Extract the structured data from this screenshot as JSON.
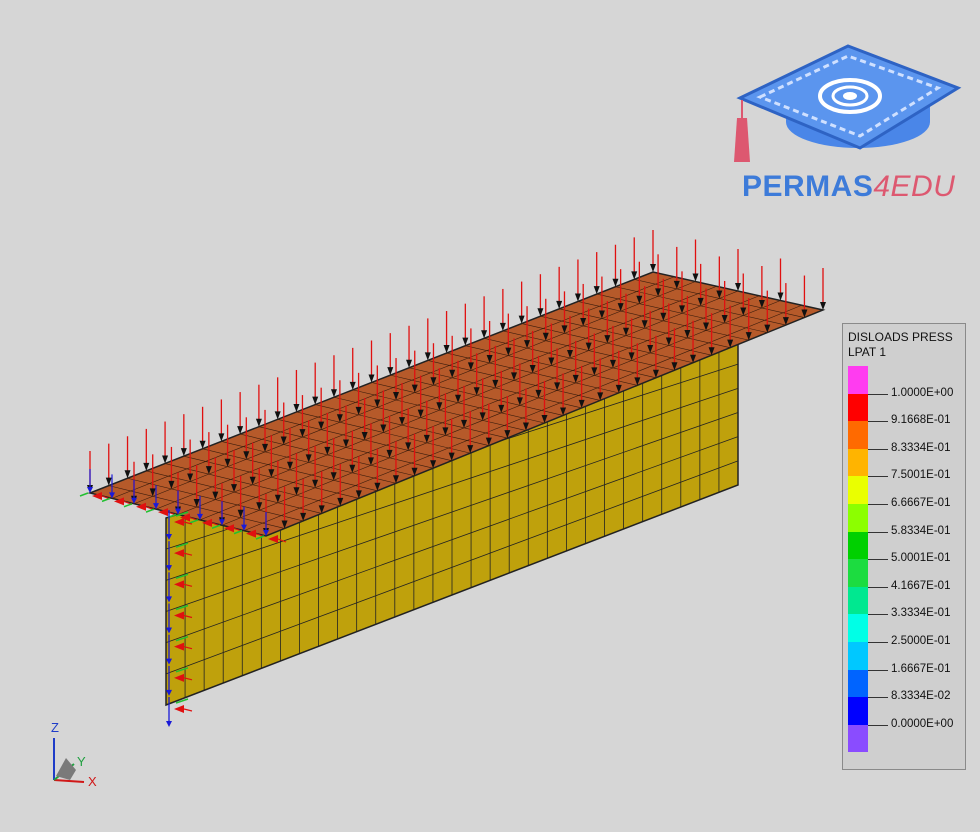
{
  "logo": {
    "brand": "PERMAS",
    "suffix": "4EDU"
  },
  "legend": {
    "title_line1": "DISLOADS PRESS",
    "title_line2": "LPAT 1",
    "colors": [
      "#ff3cf0",
      "#ff0000",
      "#ff6a00",
      "#ffb400",
      "#eaff00",
      "#8cff00",
      "#00d000",
      "#1cdc40",
      "#00e890",
      "#00ffe6",
      "#00c8ff",
      "#0064ff",
      "#0000ff",
      "#8a4cff"
    ],
    "ticks": [
      "1.0000E+00",
      "9.1668E-01",
      "8.3334E-01",
      "7.5001E-01",
      "6.6667E-01",
      "5.8334E-01",
      "5.0001E-01",
      "4.1667E-01",
      "3.3334E-01",
      "2.5000E-01",
      "1.6667E-01",
      "8.3334E-02",
      "0.0000E+00"
    ]
  },
  "triad": {
    "z": "Z",
    "y": "Y",
    "x": "X"
  },
  "model": {
    "flange_color": "#b65a2a",
    "web_color": "#bfa10c"
  }
}
